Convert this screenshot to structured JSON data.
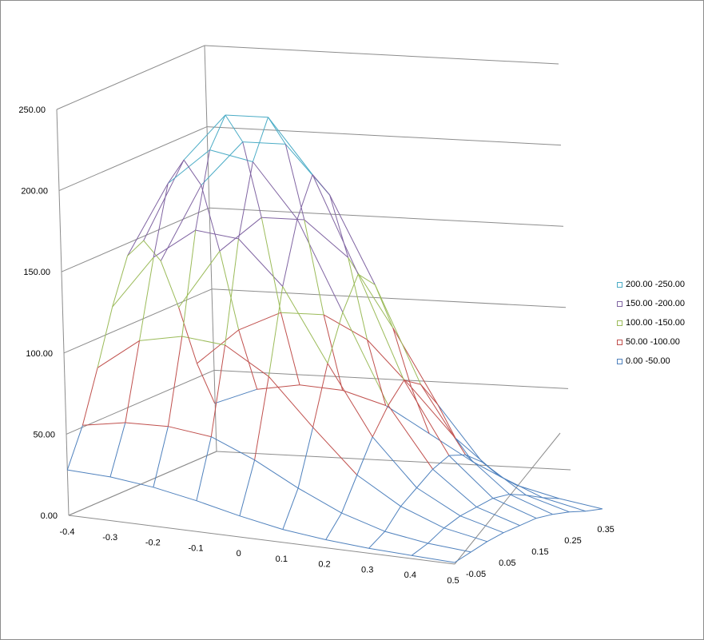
{
  "chart_data": {
    "type": "surface-wireframe-3d",
    "title": "",
    "xlabel": "",
    "ylabel": "",
    "zlabel": "",
    "x": [
      -0.4,
      -0.3,
      -0.2,
      -0.1,
      0,
      0.1,
      0.2,
      0.3,
      0.4,
      0.5
    ],
    "x_tick_labels": [
      "-0.4",
      "-0.3",
      "-0.2",
      "-0.1",
      "0",
      "0.1",
      "0.2",
      "0.3",
      "0.4",
      "0.5"
    ],
    "y": [
      -0.05,
      0.0,
      0.05,
      0.1,
      0.15,
      0.2,
      0.25,
      0.3,
      0.35,
      0.4
    ],
    "y_tick_labels": [
      "-0.05",
      "0.05",
      "0.15",
      "0.25",
      "0.35"
    ],
    "z_ticks": [
      "0.00",
      "50.00",
      "100.00",
      "150.00",
      "200.00",
      "250.00"
    ],
    "zlim": [
      0,
      250
    ],
    "bands": [
      {
        "label": "0.00 -50.00",
        "min": 0,
        "max": 50,
        "color": "#4f81bd"
      },
      {
        "label": "50.00 -100.00",
        "min": 50,
        "max": 100,
        "color": "#c0504d"
      },
      {
        "label": "100.00 -150.00",
        "min": 100,
        "max": 150,
        "color": "#9bbb59"
      },
      {
        "label": "150.00 -200.00",
        "min": 150,
        "max": 200,
        "color": "#8064a2"
      },
      {
        "label": "200.00 -250.00",
        "min": 200,
        "max": 250,
        "color": "#4bacc6"
      }
    ],
    "z_values": [
      [
        28,
        27,
        24,
        19,
        13,
        8,
        5,
        3,
        2,
        1
      ],
      [
        52,
        57,
        58,
        55,
        44,
        30,
        18,
        10,
        6,
        4
      ],
      [
        84,
        104,
        110,
        108,
        92,
        64,
        38,
        22,
        12,
        7
      ],
      [
        118,
        152,
        172,
        170,
        144,
        100,
        58,
        30,
        16,
        9
      ],
      [
        146,
        194,
        218,
        214,
        182,
        128,
        74,
        38,
        18,
        10
      ],
      [
        152,
        205,
        236,
        238,
        206,
        148,
        86,
        43,
        20,
        11
      ],
      [
        136,
        186,
        216,
        218,
        190,
        138,
        80,
        40,
        19,
        10
      ],
      [
        104,
        142,
        166,
        168,
        148,
        108,
        64,
        32,
        15,
        8
      ],
      [
        66,
        90,
        104,
        106,
        94,
        68,
        40,
        20,
        10,
        5
      ],
      [
        38,
        50,
        56,
        56,
        50,
        36,
        22,
        11,
        6,
        3
      ]
    ],
    "grid": true,
    "legend": "right"
  }
}
